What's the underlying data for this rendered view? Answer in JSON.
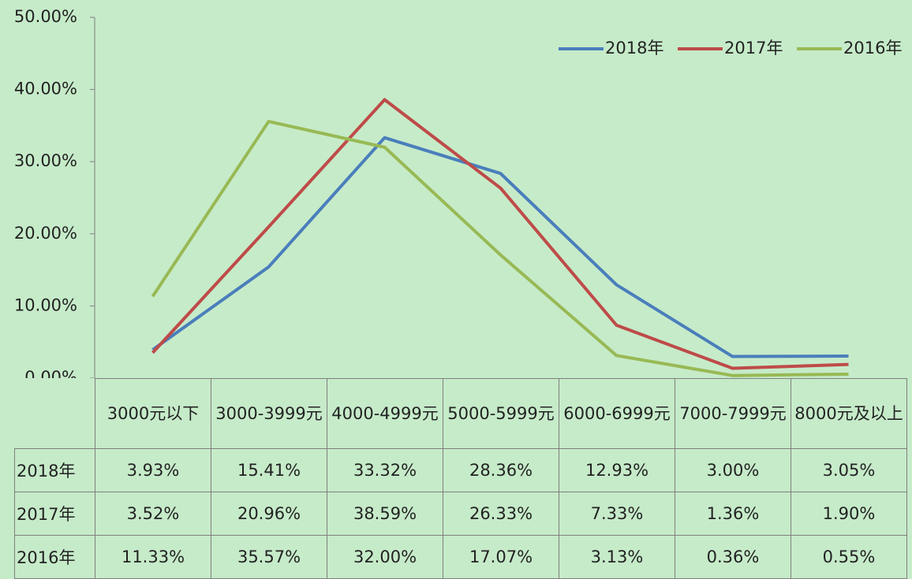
{
  "chart_data": {
    "type": "line",
    "categories": [
      "3000元以下",
      "3000-3999元",
      "4000-4999元",
      "5000-5999元",
      "6000-6999元",
      "7000-7999元",
      "8000元及以上"
    ],
    "series": [
      {
        "name": "2018年",
        "color": "#4a7ebb",
        "values": [
          3.93,
          15.41,
          33.32,
          28.36,
          12.93,
          3.0,
          3.05
        ],
        "value_labels": [
          "3.93%",
          "15.41%",
          "33.32%",
          "28.36%",
          "12.93%",
          "3.00%",
          "3.05%"
        ]
      },
      {
        "name": "2017年",
        "color": "#be4b48",
        "values": [
          3.52,
          20.96,
          38.59,
          26.33,
          7.33,
          1.36,
          1.9
        ],
        "value_labels": [
          "3.52%",
          "20.96%",
          "38.59%",
          "26.33%",
          "7.33%",
          "1.36%",
          "1.90%"
        ]
      },
      {
        "name": "2016年",
        "color": "#98b954",
        "values": [
          11.33,
          35.57,
          32.0,
          17.07,
          3.13,
          0.36,
          0.55
        ],
        "value_labels": [
          "11.33%",
          "35.57%",
          "32.00%",
          "17.07%",
          "3.13%",
          "0.36%",
          "0.55%"
        ]
      }
    ],
    "ylim": [
      0,
      50
    ],
    "yticks": [
      {
        "value": 0,
        "label": "0.00%"
      },
      {
        "value": 10,
        "label": "10.00%"
      },
      {
        "value": 20,
        "label": "20.00%"
      },
      {
        "value": 30,
        "label": "30.00%"
      },
      {
        "value": 40,
        "label": "40.00%"
      },
      {
        "value": 50,
        "label": "50.00%"
      }
    ],
    "legend": "top-right"
  }
}
